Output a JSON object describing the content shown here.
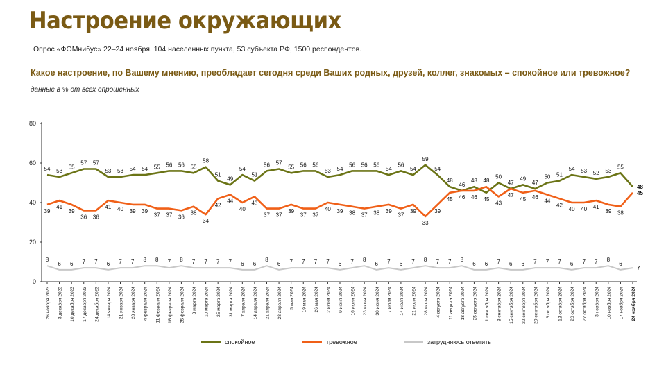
{
  "header": {
    "title": "Настроение окружающих",
    "subtitle": "Опрос «ФОМнибус» 22–24 ноября. 104 населенных пункта, 53 субъекта РФ, 1500 респондентов.",
    "question": "Какое настроение, по Вашему мнению, преобладает сегодня среди Ваших родных, друзей, коллег, знакомых – спокойное или тревожное?",
    "note": "данные в % от всех опрошенных"
  },
  "chart_data": {
    "type": "line",
    "ylim": [
      0,
      80
    ],
    "yticks": [
      0,
      20,
      40,
      60,
      80
    ],
    "categories": [
      "26 ноября 2023",
      "3 декабря 2023",
      "10 декабря 2023",
      "17 декабря 2023",
      "24 декабря 2023",
      "14 января 2024",
      "21 января 2024",
      "28 января 2024",
      "4 февраля 2024",
      "11 февраля 2024",
      "18 февраля 2024",
      "25 февраля 2024",
      "3 марта 2024",
      "10 марта 2024",
      "25 марта 2024",
      "31 марта 2024",
      "7 апреля 2024",
      "14 апреля 2024",
      "21 апреля 2024",
      "28 апреля 2024",
      "5 мая 2024",
      "19 мая 2024",
      "26 мая 2024",
      "2 июня 2024",
      "9 июня 2024",
      "16 июня 2024",
      "23 июня 2024",
      "30 июня 2024",
      "7 июля 2024",
      "14 июля 2024",
      "21 июля 2024",
      "28 июля 2024",
      "4 августа 2024",
      "11 августа 2024",
      "18 августа 2024",
      "25 августа 2024",
      "1 сентября 2024",
      "8 сентября 2024",
      "15 сентября 2024",
      "22 сентября 2024",
      "29 сентября 2024",
      "6 октября 2024",
      "13 октября 2024",
      "20 октября 2024",
      "27 октября 2024",
      "3 ноября 2024",
      "10 ноября 2024",
      "17 ноября 2024",
      "24 ноября 2024"
    ],
    "series": [
      {
        "name": "спокойное",
        "color": "#6b7416",
        "values": [
          54,
          53,
          55,
          57,
          57,
          53,
          53,
          54,
          54,
          55,
          56,
          56,
          55,
          58,
          51,
          49,
          54,
          51,
          56,
          57,
          55,
          56,
          56,
          53,
          54,
          56,
          56,
          56,
          54,
          56,
          54,
          59,
          54,
          48,
          46,
          48,
          45,
          50,
          47,
          49,
          47,
          50,
          51,
          54,
          53,
          52,
          53,
          55,
          48
        ]
      },
      {
        "name": "тревожное",
        "color": "#f06018",
        "values": [
          39,
          41,
          39,
          36,
          36,
          41,
          40,
          39,
          39,
          37,
          37,
          36,
          38,
          34,
          42,
          44,
          40,
          43,
          37,
          37,
          39,
          37,
          37,
          40,
          39,
          38,
          37,
          38,
          39,
          37,
          39,
          33,
          39,
          45,
          46,
          46,
          48,
          43,
          47,
          45,
          46,
          44,
          42,
          40,
          40,
          41,
          39,
          38,
          45
        ]
      },
      {
        "name": "затрудняюсь ответить",
        "color": "#c8c8c8",
        "values": [
          8,
          6,
          6,
          7,
          7,
          6,
          7,
          7,
          8,
          8,
          7,
          8,
          7,
          7,
          7,
          7,
          6,
          6,
          8,
          6,
          7,
          7,
          7,
          7,
          6,
          7,
          8,
          6,
          7,
          6,
          7,
          8,
          7,
          7,
          8,
          6,
          6,
          7,
          6,
          6,
          7,
          7,
          7,
          6,
          7,
          7,
          8,
          6,
          7
        ]
      }
    ]
  }
}
